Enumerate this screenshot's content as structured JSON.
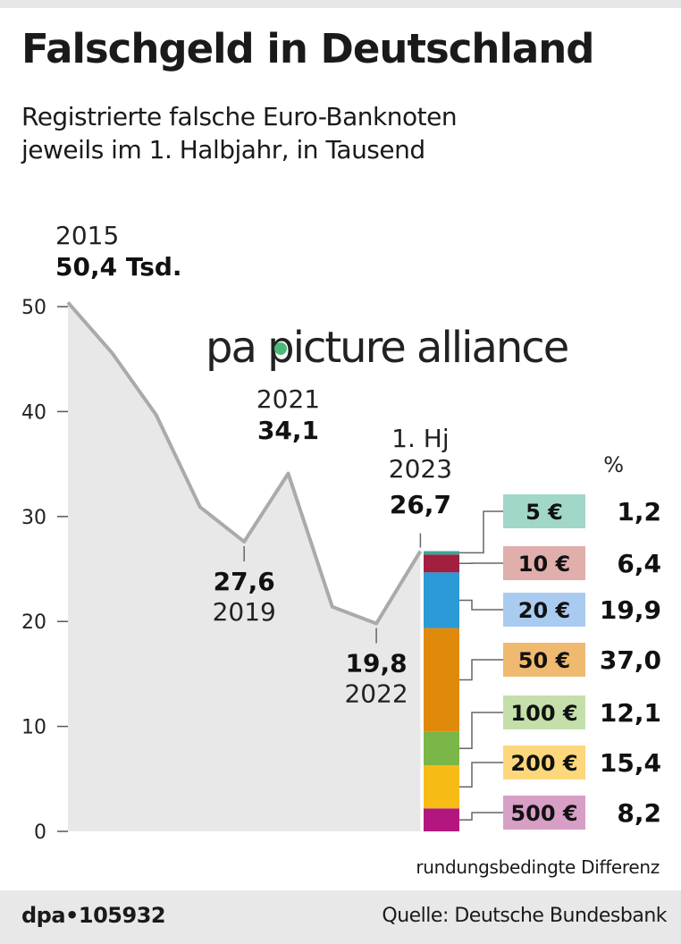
{
  "header": {
    "title": "Falschgeld in Deutschland",
    "subtitle_line1": "Registrierte falsche Euro-Banknoten",
    "subtitle_line2": "jeweils im 1. Halbjahr, in Tausend"
  },
  "chart_data": [
    {
      "type": "area",
      "ylim": [
        0,
        52
      ],
      "yticks": [
        "0",
        "10",
        "20",
        "30",
        "40",
        "50"
      ],
      "ytick_values": [
        0,
        10,
        20,
        30,
        40,
        50
      ],
      "grid": false,
      "values": [
        50.4,
        45.6,
        39.7,
        30.9,
        27.6,
        34.1,
        21.4,
        19.8,
        26.7
      ],
      "colors": {
        "line": "#aaaaaa",
        "fill": "#e8e8e8"
      },
      "annotations": [
        {
          "index": 0,
          "label": "2015",
          "value_label": "50,4 Tsd.",
          "position": "above"
        },
        {
          "index": 4,
          "label": "2019",
          "value_label": "27,6",
          "position": "below"
        },
        {
          "index": 5,
          "label": "2021",
          "value_label": "34,1",
          "position": "above"
        },
        {
          "index": 7,
          "label": "2022",
          "value_label": "19,8",
          "position": "below"
        },
        {
          "index": 8,
          "label": "1. Hj",
          "value_label": "26,7",
          "position": "above"
        }
      ]
    },
    {
      "type": "bar",
      "stacked": true,
      "title": "%",
      "categories": [
        "500 €",
        "200 €",
        "100 €",
        "50 €",
        "20 €",
        "10 €",
        "5 €"
      ],
      "values": [
        8.2,
        15.4,
        12.1,
        37.0,
        19.9,
        6.4,
        1.2
      ],
      "value_labels": [
        "8,2",
        "15,4",
        "12,1",
        "37,0",
        "19,9",
        "6,4",
        "1,2"
      ],
      "colors": [
        "#b3177f",
        "#f7bb15",
        "#7ab648",
        "#e08a0b",
        "#2b9ad7",
        "#a1203f",
        "#3aa79a"
      ],
      "label_colors": [
        "#d79ec6",
        "#fdd77c",
        "#c4dfaa",
        "#f0b970",
        "#a9cbef",
        "#e0aeab",
        "#a0d7c9"
      ]
    }
  ],
  "note": "rundungsbedingte Differenz",
  "footer": {
    "credit": "dpa•105932",
    "source": "Quelle: Deutsche Bundesbank"
  },
  "watermark": "pa picture alliance"
}
